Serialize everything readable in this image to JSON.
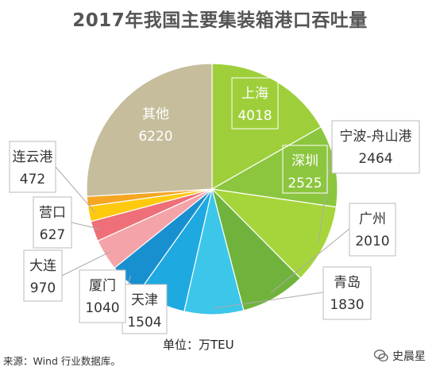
{
  "chart_data": {
    "type": "pie",
    "title": "2017年我国主要集装箱港口吞吐量",
    "unit": "单位：万TEU",
    "slices": [
      {
        "label": "上海",
        "value": 4018,
        "color": "#9ecf3b"
      },
      {
        "label": "深圳",
        "value": 2525,
        "color": "#8cc63f"
      },
      {
        "label": "宁波-舟山港",
        "value": 2464,
        "color": "#a6d53b"
      },
      {
        "label": "广州",
        "value": 2010,
        "color": "#6fb33c"
      },
      {
        "label": "青岛",
        "value": 1830,
        "color": "#3cc6ea"
      },
      {
        "label": "天津",
        "value": 1504,
        "color": "#1ea9e1"
      },
      {
        "label": "厦门",
        "value": 1040,
        "color": "#1890d0"
      },
      {
        "label": "大连",
        "value": 970,
        "color": "#f4a3a8"
      },
      {
        "label": "营口",
        "value": 627,
        "color": "#ee6f78"
      },
      {
        "label": "连云港",
        "value": 472,
        "color": "#ffc90e"
      },
      {
        "label": "其他",
        "value": 6220,
        "color": "#c6bd9c"
      }
    ],
    "extra_slice": {
      "value_color": "#f6a623"
    }
  },
  "footer": {
    "source": "来源：Wind 行业数据库。",
    "watermark": "史晨星"
  }
}
